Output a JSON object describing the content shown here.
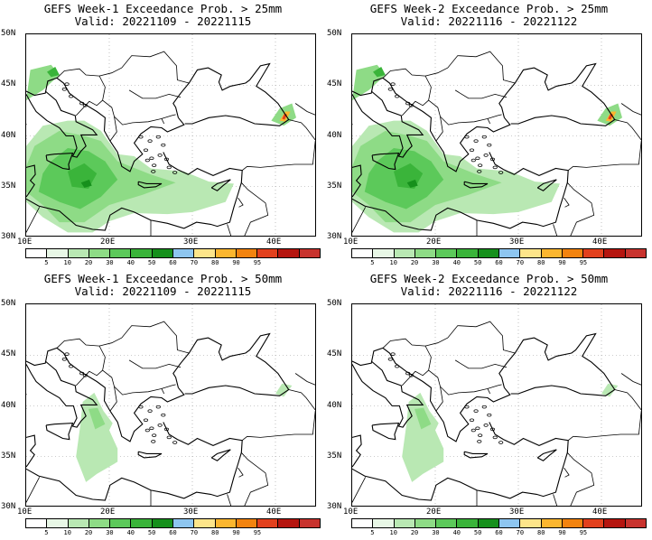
{
  "panels": [
    {
      "title": "GEFS Week-1 Exceedance Prob. > 25mm",
      "valid": "Valid: 20221109 - 20221115",
      "threshold": 25
    },
    {
      "title": "GEFS Week-2 Exceedance Prob. > 25mm",
      "valid": "Valid: 20221116 - 20221122",
      "threshold": 25
    },
    {
      "title": "GEFS Week-1 Exceedance Prob. > 50mm",
      "valid": "Valid: 20221109 - 20221115",
      "threshold": 50
    },
    {
      "title": "GEFS Week-2 Exceedance Prob. > 50mm",
      "valid": "Valid: 20221116 - 20221122",
      "threshold": 50
    }
  ],
  "lat_labels": [
    "50N",
    "45N",
    "40N",
    "35N",
    "30N"
  ],
  "lon_labels": [
    "10E",
    "20E",
    "30E",
    "40E"
  ],
  "colorbar": {
    "ticks": [
      "5",
      "10",
      "20",
      "30",
      "40",
      "50",
      "60",
      "70",
      "80",
      "90",
      "95"
    ],
    "colors": [
      "#ffffff",
      "#e8f7e6",
      "#b9e8b3",
      "#8edb86",
      "#5cc95a",
      "#3ab43a",
      "#16901c",
      "#8ec6f0",
      "#fde58a",
      "#fbb62f",
      "#f2830f",
      "#e2401d",
      "#b5150f",
      "#c8332e"
    ]
  }
}
